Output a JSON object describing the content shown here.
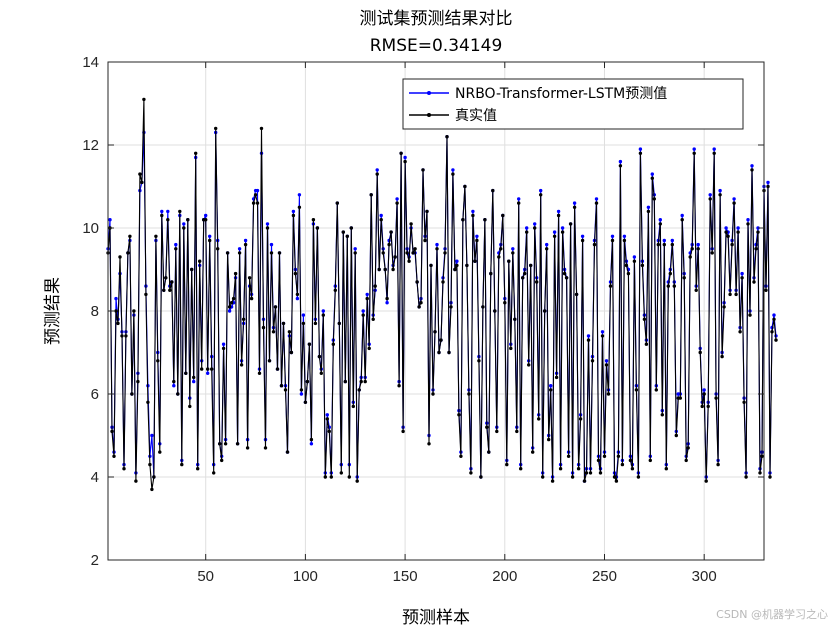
{
  "watermark": "CSDN @机器学习之心",
  "chart_data": {
    "type": "line",
    "title": "测试集预测结果对比",
    "subtitle": "RMSE=0.34149",
    "xlabel": "预测样本",
    "ylabel": "预测结果",
    "xlim": [
      1,
      330
    ],
    "ylim": [
      2,
      14
    ],
    "xticks": [
      50,
      100,
      150,
      200,
      250,
      300
    ],
    "yticks": [
      2,
      4,
      6,
      8,
      10,
      12,
      14
    ],
    "grid": true,
    "legend_position": "top-right",
    "series": [
      {
        "name": "NRBO-Transformer-LSTM预测值",
        "color": "#0000ff",
        "values": [
          9.5,
          10.2,
          5.2,
          4.6,
          8.3,
          7.8,
          8.9,
          7.5,
          4.3,
          7.5,
          9.4,
          9.7,
          6.0,
          7.9,
          4.1,
          6.5,
          10.9,
          11.1,
          12.3,
          8.6,
          6.2,
          4.5,
          5.0,
          4.0,
          9.7,
          7.0,
          4.8,
          10.4,
          8.5,
          8.8,
          10.4,
          8.6,
          8.7,
          6.2,
          9.6,
          6.0,
          10.3,
          4.4,
          10.1,
          6.5,
          10.2,
          5.9,
          9.0,
          6.3,
          11.7,
          4.3,
          9.1,
          6.8,
          10.2,
          10.3,
          6.5,
          9.8,
          6.9,
          4.3,
          12.3,
          9.7,
          4.8,
          4.5,
          7.2,
          4.9,
          9.4,
          8.0,
          8.1,
          8.2,
          8.8,
          4.8,
          9.5,
          6.8,
          7.7,
          9.7,
          4.9,
          8.6,
          8.4,
          10.7,
          10.9,
          10.9,
          6.6,
          11.8,
          7.8,
          4.9,
          10.1,
          6.8,
          9.6,
          7.6,
          8.1,
          6.6,
          9.4,
          6.2,
          7.7,
          6.2,
          4.6,
          7.4,
          7.0,
          10.4,
          9.0,
          8.3,
          10.8,
          6.0,
          7.9,
          5.8,
          6.3,
          7.2,
          4.8,
          10.1,
          7.8,
          10.0,
          6.9,
          6.6,
          8.0,
          4.1,
          5.5,
          5.2,
          4.1,
          7.3,
          8.6,
          10.6,
          7.7,
          4.3,
          9.9,
          6.3,
          9.8,
          4.3,
          10.0,
          5.8,
          9.5,
          4.0,
          6.1,
          6.4,
          8.0,
          6.4,
          8.4,
          7.2,
          10.8,
          7.9,
          8.5,
          11.4,
          9.0,
          10.3,
          9.5,
          9.0,
          8.2,
          9.7,
          9.9,
          9.1,
          9.3,
          10.7,
          6.3,
          11.8,
          5.2,
          11.7,
          9.5,
          9.3,
          10.0,
          9.4,
          9.4,
          8.7,
          8.1,
          8.3,
          11.4,
          9.8,
          10.4,
          5.0,
          9.1,
          6.1,
          7.5,
          9.6,
          7.0,
          7.3,
          8.8,
          9.5,
          12.2,
          7.0,
          8.2,
          11.4,
          9.0,
          9.2,
          5.6,
          4.6,
          10.2,
          11.0,
          9.1,
          6.1,
          4.2,
          10.4,
          9.2,
          9.8,
          6.9,
          4.0,
          8.1,
          10.2,
          5.3,
          4.6,
          8.9,
          10.9,
          8.0,
          5.2,
          9.4,
          9.6,
          10.3,
          8.3,
          4.4,
          9.2,
          7.2,
          9.5,
          7.8,
          5.2,
          10.7,
          4.3,
          8.8,
          9.0,
          10.0,
          6.8,
          9.1,
          4.7,
          10.1,
          8.8,
          5.5,
          10.9,
          4.1,
          8.0,
          9.6,
          5.0,
          6.2,
          4.0,
          9.9,
          6.5,
          10.4,
          4.3,
          10.0,
          9.0,
          8.8,
          4.6,
          10.1,
          4.1,
          10.6,
          8.4,
          4.3,
          5.5,
          9.8,
          3.9,
          4.2,
          7.4,
          4.2,
          6.9,
          9.7,
          10.7,
          4.5,
          4.2,
          7.5,
          4.6,
          6.8,
          6.1,
          8.7,
          9.8,
          4.1,
          4.0,
          4.6,
          11.6,
          4.4,
          9.8,
          9.2,
          9.0,
          4.5,
          4.3,
          9.3,
          6.2,
          4.1,
          11.9,
          9.2,
          7.9,
          7.3,
          10.5,
          4.5,
          11.3,
          10.8,
          6.2,
          9.7,
          10.2,
          5.6,
          9.7,
          4.3,
          8.7,
          9.0,
          9.7,
          8.7,
          5.1,
          6.0,
          6.0,
          10.3,
          8.9,
          4.5,
          4.8,
          9.4,
          9.6,
          11.9,
          8.6,
          9.6,
          7.1,
          5.8,
          6.1,
          4.0,
          5.8,
          10.8,
          9.5,
          11.9,
          6.0,
          4.4,
          10.9,
          7.0,
          8.2,
          10.0,
          9.9,
          8.5,
          9.7,
          10.7,
          8.5,
          10.0,
          7.6,
          8.9,
          5.9,
          4.1,
          10.2,
          8.0,
          11.5,
          8.8,
          9.6,
          10.0,
          4.2,
          4.6,
          11.0,
          8.6,
          11.1,
          4.1,
          7.6,
          7.9,
          7.4
        ]
      },
      {
        "name": "真实值",
        "color": "#000000",
        "values": [
          9.4,
          10.0,
          5.1,
          4.5,
          8.0,
          7.7,
          9.3,
          7.4,
          4.2,
          7.4,
          9.4,
          9.8,
          6.0,
          8.0,
          3.9,
          6.3,
          11.3,
          11.1,
          13.1,
          8.4,
          5.8,
          4.3,
          3.7,
          4.0,
          9.8,
          6.8,
          4.6,
          10.3,
          8.5,
          8.8,
          10.2,
          8.5,
          8.7,
          6.3,
          9.5,
          6.0,
          10.4,
          4.3,
          10.0,
          6.5,
          10.2,
          5.7,
          9.0,
          6.4,
          11.8,
          4.2,
          9.2,
          6.6,
          10.2,
          10.2,
          6.6,
          9.7,
          6.6,
          4.1,
          12.4,
          9.5,
          4.8,
          4.4,
          7.1,
          4.8,
          9.4,
          8.1,
          8.2,
          8.3,
          8.9,
          4.8,
          9.4,
          6.7,
          7.8,
          9.6,
          4.7,
          8.8,
          8.3,
          10.6,
          10.8,
          10.6,
          6.5,
          12.4,
          7.6,
          4.7,
          10.0,
          6.8,
          9.4,
          7.5,
          8.1,
          6.6,
          9.4,
          6.2,
          7.7,
          6.1,
          4.6,
          7.5,
          7.0,
          10.3,
          8.9,
          8.4,
          10.5,
          6.1,
          7.7,
          5.8,
          6.3,
          7.2,
          4.9,
          10.2,
          7.7,
          10.0,
          6.9,
          6.5,
          7.9,
          4.0,
          5.4,
          5.1,
          4.0,
          7.2,
          8.5,
          10.6,
          7.7,
          4.1,
          9.9,
          6.3,
          9.8,
          4.0,
          10.0,
          5.7,
          9.4,
          3.9,
          6.1,
          6.3,
          7.9,
          6.3,
          8.3,
          7.1,
          10.8,
          7.8,
          8.6,
          11.3,
          9.0,
          10.2,
          9.4,
          9.0,
          8.3,
          9.6,
          9.9,
          9.0,
          9.3,
          10.6,
          6.2,
          11.8,
          5.1,
          11.6,
          9.4,
          9.2,
          10.1,
          9.4,
          9.5,
          8.7,
          8.1,
          8.2,
          11.4,
          9.7,
          10.4,
          4.8,
          9.1,
          6.0,
          7.5,
          9.5,
          7.0,
          7.3,
          8.7,
          9.4,
          12.2,
          7.0,
          8.1,
          11.3,
          9.0,
          9.1,
          5.5,
          4.5,
          10.2,
          11.0,
          9.1,
          6.0,
          4.1,
          10.3,
          9.2,
          9.7,
          6.8,
          4.0,
          8.1,
          10.2,
          5.2,
          4.6,
          8.9,
          10.9,
          8.0,
          5.1,
          9.3,
          9.5,
          10.3,
          8.2,
          4.3,
          9.2,
          7.1,
          9.4,
          7.8,
          5.1,
          10.6,
          4.2,
          8.8,
          8.9,
          9.9,
          6.7,
          9.1,
          4.6,
          10.0,
          8.7,
          5.4,
          10.8,
          4.0,
          8.0,
          9.5,
          4.9,
          6.1,
          3.9,
          9.8,
          6.4,
          10.3,
          4.2,
          9.9,
          8.9,
          8.8,
          4.5,
          10.1,
          4.0,
          10.5,
          8.4,
          4.2,
          5.4,
          9.7,
          3.9,
          4.1,
          7.3,
          4.1,
          6.8,
          9.6,
          10.6,
          4.4,
          4.1,
          7.4,
          4.5,
          6.7,
          6.0,
          8.6,
          9.7,
          4.0,
          3.9,
          4.5,
          11.5,
          4.3,
          9.7,
          9.1,
          8.9,
          4.4,
          4.2,
          9.2,
          6.1,
          4.0,
          11.8,
          9.1,
          7.8,
          7.2,
          10.4,
          4.4,
          11.2,
          10.7,
          6.1,
          9.6,
          10.1,
          5.5,
          9.6,
          4.2,
          8.6,
          8.9,
          9.6,
          8.6,
          5.0,
          5.9,
          5.9,
          10.2,
          8.8,
          4.4,
          4.7,
          9.3,
          9.5,
          11.8,
          8.5,
          9.5,
          7.0,
          5.7,
          6.0,
          3.9,
          5.7,
          10.7,
          9.4,
          11.8,
          5.9,
          4.3,
          10.8,
          6.9,
          8.1,
          9.9,
          9.8,
          8.4,
          9.6,
          10.6,
          8.4,
          9.9,
          7.5,
          8.8,
          5.8,
          4.0,
          10.1,
          7.9,
          11.4,
          8.7,
          9.5,
          9.9,
          4.1,
          4.5,
          10.9,
          8.5,
          11.0,
          4.0,
          7.5,
          7.8,
          7.3
        ]
      }
    ]
  }
}
